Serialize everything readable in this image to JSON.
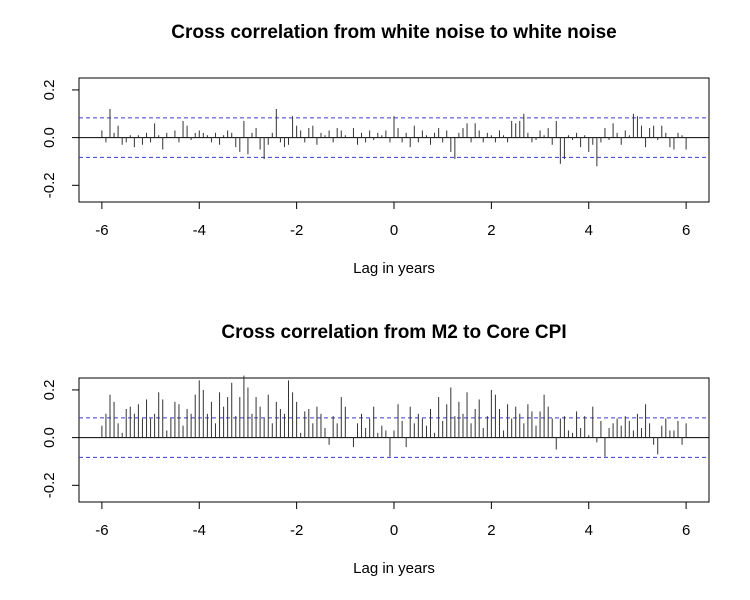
{
  "chart_data": [
    {
      "type": "ccf",
      "title": "Cross correlation from white noise to white noise",
      "xlabel": "Lag in years",
      "xlim": [
        -6.47,
        6.47
      ],
      "ylim": [
        -0.27,
        0.25
      ],
      "xticks": [
        -6,
        -4,
        -2,
        0,
        2,
        4,
        6
      ],
      "yticks": [
        -0.2,
        {
          "value": 0,
          "label": "0.0"
        },
        0.2
      ],
      "ci_lines": [
        0.083,
        -0.083
      ],
      "ci_color": "#3b3bd6",
      "color": "#333333",
      "x": [
        -6,
        -5.917,
        -5.833,
        -5.75,
        -5.667,
        -5.583,
        -5.5,
        -5.417,
        -5.333,
        -5.25,
        -5.167,
        -5.083,
        -5,
        -4.917,
        -4.833,
        -4.75,
        -4.667,
        -4.583,
        -4.5,
        -4.417,
        -4.333,
        -4.25,
        -4.167,
        -4.083,
        -4,
        -3.917,
        -3.833,
        -3.75,
        -3.667,
        -3.583,
        -3.5,
        -3.417,
        -3.333,
        -3.25,
        -3.167,
        -3.083,
        -3,
        -2.917,
        -2.833,
        -2.75,
        -2.667,
        -2.583,
        -2.5,
        -2.417,
        -2.333,
        -2.25,
        -2.167,
        -2.083,
        -2,
        -1.917,
        -1.833,
        -1.75,
        -1.667,
        -1.583,
        -1.5,
        -1.417,
        -1.333,
        -1.25,
        -1.167,
        -1.083,
        -1,
        -0.917,
        -0.833,
        -0.75,
        -0.667,
        -0.583,
        -0.5,
        -0.417,
        -0.333,
        -0.25,
        -0.167,
        -0.083,
        0,
        0.083,
        0.167,
        0.25,
        0.333,
        0.417,
        0.5,
        0.583,
        0.667,
        0.75,
        0.833,
        0.917,
        1,
        1.083,
        1.167,
        1.25,
        1.333,
        1.417,
        1.5,
        1.583,
        1.667,
        1.75,
        1.833,
        1.917,
        2,
        2.083,
        2.167,
        2.25,
        2.333,
        2.417,
        2.5,
        2.583,
        2.667,
        2.75,
        2.833,
        2.917,
        3,
        3.083,
        3.167,
        3.25,
        3.333,
        3.417,
        3.5,
        3.583,
        3.667,
        3.75,
        3.833,
        3.917,
        4,
        4.083,
        4.167,
        4.25,
        4.333,
        4.417,
        4.5,
        4.583,
        4.667,
        4.75,
        4.833,
        4.917,
        5,
        5.083,
        5.167,
        5.25,
        5.333,
        5.417,
        5.5,
        5.583,
        5.667,
        5.75,
        5.833,
        5.917,
        6
      ],
      "values": [
        0.03,
        -0.02,
        0.12,
        0.02,
        0.05,
        -0.03,
        -0.02,
        0.01,
        -0.04,
        0.01,
        -0.03,
        0.02,
        -0.02,
        0.06,
        0.01,
        -0.05,
        0.02,
        0.0,
        0.03,
        -0.02,
        0.07,
        0.05,
        -0.01,
        0.02,
        0.03,
        0.02,
        0.01,
        -0.02,
        0.02,
        -0.03,
        0.01,
        0.03,
        0.02,
        -0.04,
        -0.06,
        0.07,
        -0.07,
        0.02,
        0.04,
        -0.05,
        -0.09,
        -0.03,
        0.02,
        0.12,
        -0.02,
        -0.04,
        -0.03,
        0.09,
        0.05,
        0.03,
        -0.02,
        0.04,
        0.05,
        -0.03,
        0.02,
        0.01,
        0.03,
        -0.02,
        0.04,
        0.03,
        0.01,
        0.0,
        0.04,
        -0.03,
        0.02,
        -0.02,
        0.03,
        -0.01,
        0.02,
        0.01,
        0.03,
        -0.02,
        0.09,
        0.04,
        -0.02,
        0.02,
        -0.04,
        0.05,
        -0.02,
        0.03,
        0.01,
        -0.03,
        0.02,
        0.04,
        -0.02,
        0.03,
        -0.06,
        -0.09,
        0.02,
        0.04,
        0.06,
        -0.02,
        0.06,
        0.03,
        -0.02,
        0.02,
        0.01,
        -0.02,
        0.03,
        0.01,
        -0.02,
        0.07,
        0.06,
        0.07,
        0.1,
        0.02,
        -0.02,
        -0.01,
        0.03,
        0.01,
        0.04,
        -0.03,
        0.07,
        -0.11,
        -0.09,
        0.01,
        -0.01,
        0.02,
        -0.04,
        0.01,
        -0.06,
        -0.03,
        -0.12,
        -0.02,
        0.04,
        -0.01,
        0.06,
        0.02,
        -0.03,
        0.03,
        0.01,
        0.1,
        0.09,
        0.05,
        -0.04,
        0.04,
        0.05,
        -0.01,
        0.05,
        0.02,
        -0.04,
        -0.05,
        0.02,
        0.01,
        -0.05
      ]
    },
    {
      "type": "ccf",
      "title": "Cross correlation from M2 to Core CPI",
      "xlabel": "Lag in years",
      "xlim": [
        -6.47,
        6.47
      ],
      "ylim": [
        -0.27,
        0.25
      ],
      "xticks": [
        -6,
        -4,
        -2,
        0,
        2,
        4,
        6
      ],
      "yticks": [
        -0.2,
        {
          "value": 0,
          "label": "0.0"
        },
        0.2
      ],
      "ci_lines": [
        0.083,
        -0.083
      ],
      "ci_color": "#3b3bd6",
      "color": "#333333",
      "x": [
        -6,
        -5.917,
        -5.833,
        -5.75,
        -5.667,
        -5.583,
        -5.5,
        -5.417,
        -5.333,
        -5.25,
        -5.167,
        -5.083,
        -5,
        -4.917,
        -4.833,
        -4.75,
        -4.667,
        -4.583,
        -4.5,
        -4.417,
        -4.333,
        -4.25,
        -4.167,
        -4.083,
        -4,
        -3.917,
        -3.833,
        -3.75,
        -3.667,
        -3.583,
        -3.5,
        -3.417,
        -3.333,
        -3.25,
        -3.167,
        -3.083,
        -3,
        -2.917,
        -2.833,
        -2.75,
        -2.667,
        -2.583,
        -2.5,
        -2.417,
        -2.333,
        -2.25,
        -2.167,
        -2.083,
        -2,
        -1.917,
        -1.833,
        -1.75,
        -1.667,
        -1.583,
        -1.5,
        -1.417,
        -1.333,
        -1.25,
        -1.167,
        -1.083,
        -1,
        -0.917,
        -0.833,
        -0.75,
        -0.667,
        -0.583,
        -0.5,
        -0.417,
        -0.333,
        -0.25,
        -0.167,
        -0.083,
        0,
        0.083,
        0.167,
        0.25,
        0.333,
        0.417,
        0.5,
        0.583,
        0.667,
        0.75,
        0.833,
        0.917,
        1,
        1.083,
        1.167,
        1.25,
        1.333,
        1.417,
        1.5,
        1.583,
        1.667,
        1.75,
        1.833,
        1.917,
        2,
        2.083,
        2.167,
        2.25,
        2.333,
        2.417,
        2.5,
        2.583,
        2.667,
        2.75,
        2.833,
        2.917,
        3,
        3.083,
        3.167,
        3.25,
        3.333,
        3.417,
        3.5,
        3.583,
        3.667,
        3.75,
        3.833,
        3.917,
        4,
        4.083,
        4.167,
        4.25,
        4.333,
        4.417,
        4.5,
        4.583,
        4.667,
        4.75,
        4.833,
        4.917,
        5,
        5.083,
        5.167,
        5.25,
        5.333,
        5.417,
        5.5,
        5.583,
        5.667,
        5.75,
        5.833,
        5.917,
        6
      ],
      "values": [
        0.05,
        0.1,
        0.18,
        0.15,
        0.06,
        0.02,
        0.12,
        0.13,
        0.1,
        0.14,
        0.08,
        0.16,
        0.08,
        0.1,
        0.19,
        0.16,
        0.03,
        0.08,
        0.15,
        0.14,
        0.05,
        0.12,
        0.1,
        0.18,
        0.24,
        0.2,
        0.1,
        0.15,
        0.06,
        0.19,
        0.13,
        0.17,
        0.23,
        0.09,
        0.17,
        0.26,
        0.21,
        0.1,
        0.17,
        0.13,
        0.08,
        0.18,
        0.06,
        0.15,
        0.12,
        0.1,
        0.24,
        0.19,
        0.15,
        0.02,
        0.11,
        0.12,
        0.06,
        0.13,
        0.1,
        0.04,
        -0.03,
        0.09,
        0.06,
        0.17,
        0.13,
        0.0,
        -0.04,
        0.06,
        0.1,
        0.04,
        0.08,
        0.13,
        0.02,
        0.05,
        0.03,
        -0.08,
        0.03,
        0.14,
        0.07,
        -0.04,
        0.13,
        0.06,
        0.1,
        0.08,
        0.05,
        0.12,
        0.02,
        0.17,
        0.07,
        0.14,
        0.21,
        0.09,
        0.15,
        0.1,
        0.19,
        0.06,
        0.12,
        0.16,
        0.04,
        0.09,
        0.2,
        0.18,
        0.12,
        0.03,
        0.14,
        0.08,
        0.13,
        0.1,
        0.06,
        0.14,
        0.11,
        0.05,
        0.11,
        0.18,
        0.13,
        0.08,
        -0.05,
        0.08,
        0.09,
        0.03,
        0.02,
        0.11,
        0.04,
        0.09,
        0.01,
        0.13,
        -0.02,
        0.07,
        -0.08,
        0.04,
        0.06,
        0.08,
        0.05,
        0.09,
        0.07,
        0.03,
        0.1,
        0.04,
        0.14,
        0.06,
        -0.03,
        -0.07,
        0.05,
        0.08,
        0.03,
        0.03,
        0.07,
        -0.03,
        0.06
      ]
    }
  ]
}
